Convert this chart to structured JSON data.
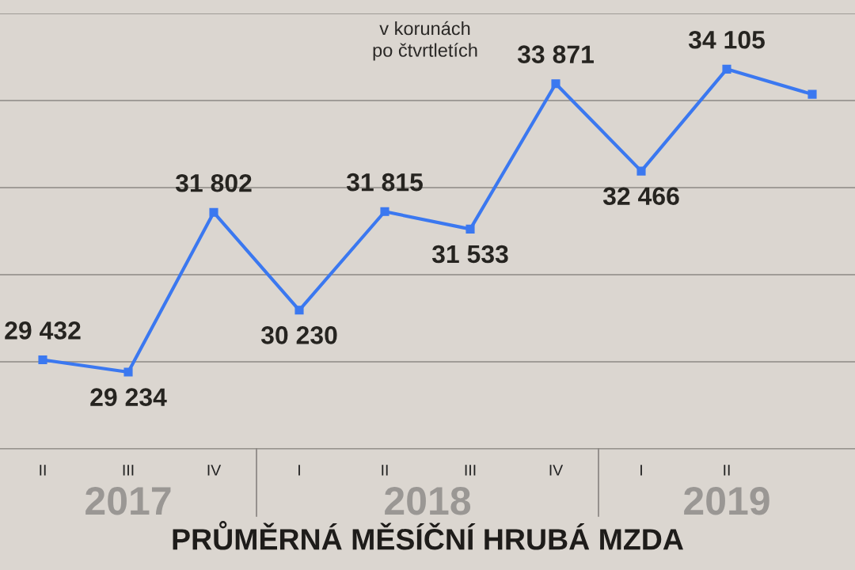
{
  "chart_data": {
    "type": "line",
    "title": "PRŮMĚRNÁ MĚSÍČNÍ HRUBÁ MZDA",
    "subtitle": "v korunách\npo čtvrtletích",
    "categories": [
      "II",
      "III",
      "IV",
      "I",
      "II",
      "III",
      "IV",
      "I",
      "II",
      null
    ],
    "series": [
      {
        "color": "#3b78f0",
        "values": [
          29432,
          29234,
          31802,
          30230,
          31815,
          31533,
          33871,
          32466,
          34105,
          33700
        ],
        "value_labels": [
          "29 432",
          "29 234",
          "31 802",
          "30 230",
          "31 815",
          "31 533",
          "33 871",
          "32 466",
          "34 105",
          null
        ]
      }
    ],
    "ylim": [
      28000,
      35000
    ],
    "yticks": [
      {
        "value": 28000,
        "label": null
      },
      {
        "value": 29400,
        "label": null
      },
      {
        "value": 30800,
        "label": null
      },
      {
        "value": 32200,
        "label": null
      },
      {
        "value": 33600,
        "label": null
      },
      {
        "value": 35000,
        "label": null
      }
    ],
    "grid": "y",
    "marker": "square",
    "line_style": "solid",
    "tick_labels": "x",
    "annotations": [
      "2017",
      "2018",
      "2019"
    ]
  }
}
